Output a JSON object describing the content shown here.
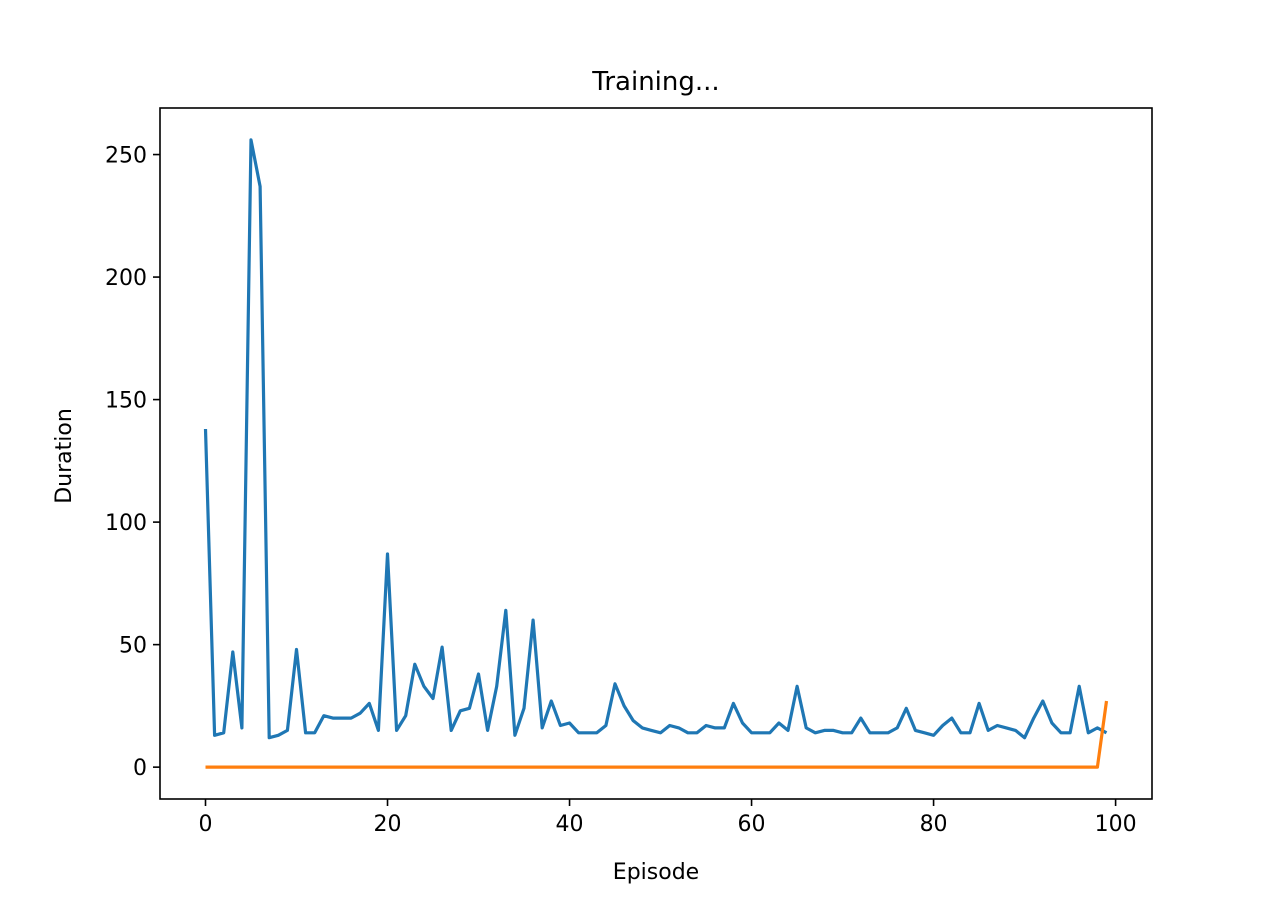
{
  "chart_data": {
    "type": "line",
    "title": "Training...",
    "xlabel": "Episode",
    "ylabel": "Duration",
    "xlim": [
      -5,
      104
    ],
    "ylim": [
      -13,
      269
    ],
    "xticks": [
      0,
      20,
      40,
      60,
      80,
      100
    ],
    "yticks": [
      0,
      50,
      100,
      150,
      200,
      250
    ],
    "grid": false,
    "legend": "none",
    "series": [
      {
        "color": "#1f77b4",
        "x": [
          0,
          1,
          2,
          3,
          4,
          5,
          6,
          7,
          8,
          9,
          10,
          11,
          12,
          13,
          14,
          15,
          16,
          17,
          18,
          19,
          20,
          21,
          22,
          23,
          24,
          25,
          26,
          27,
          28,
          29,
          30,
          31,
          32,
          33,
          34,
          35,
          36,
          37,
          38,
          39,
          40,
          41,
          42,
          43,
          44,
          45,
          46,
          47,
          48,
          49,
          50,
          51,
          52,
          53,
          54,
          55,
          56,
          57,
          58,
          59,
          60,
          61,
          62,
          63,
          64,
          65,
          66,
          67,
          68,
          69,
          70,
          71,
          72,
          73,
          74,
          75,
          76,
          77,
          78,
          79,
          80,
          81,
          82,
          83,
          84,
          85,
          86,
          87,
          88,
          89,
          90,
          91,
          92,
          93,
          94,
          95,
          96,
          97,
          98,
          99
        ],
        "y": [
          138,
          13,
          14,
          47,
          16,
          256,
          237,
          12,
          13,
          15,
          48,
          14,
          14,
          21,
          20,
          20,
          20,
          22,
          26,
          15,
          87,
          15,
          21,
          42,
          33,
          28,
          49,
          15,
          23,
          24,
          38,
          15,
          33,
          64,
          13,
          24,
          60,
          16,
          27,
          17,
          18,
          14,
          14,
          14,
          17,
          34,
          25,
          19,
          16,
          15,
          14,
          17,
          16,
          14,
          14,
          17,
          16,
          16,
          26,
          18,
          14,
          14,
          14,
          18,
          15,
          33,
          16,
          14,
          15,
          15,
          14,
          14,
          20,
          14,
          14,
          14,
          16,
          24,
          15,
          14,
          13,
          17,
          20,
          14,
          14,
          26,
          15,
          17,
          16,
          15,
          12,
          20,
          27,
          18,
          14,
          14,
          33,
          14,
          16,
          14
        ]
      },
      {
        "color": "#ff7f0e",
        "x": [
          0,
          98,
          99
        ],
        "y": [
          0,
          0,
          27
        ]
      }
    ]
  }
}
